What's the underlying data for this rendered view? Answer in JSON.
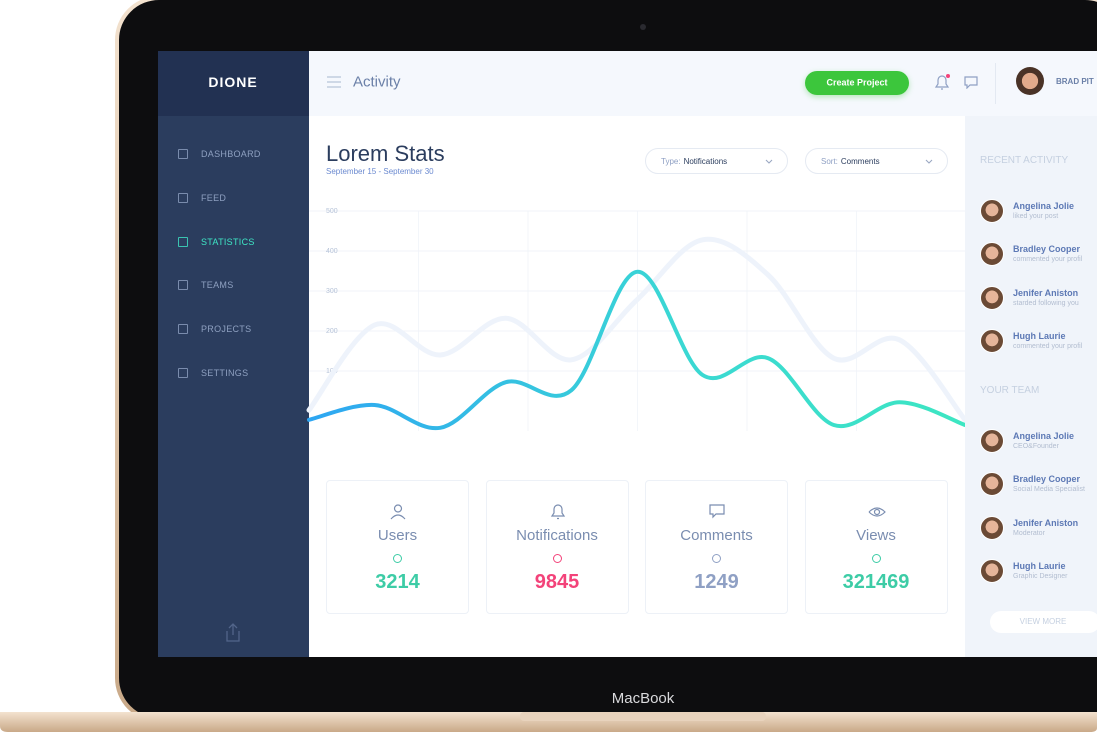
{
  "sidebar": {
    "logo": "DIONE",
    "menu": [
      "DASHBOARD",
      "FEED",
      "STATISTICS",
      "TEAMS",
      "PROJECTS",
      "SETTINGS"
    ]
  },
  "topbar": {
    "title": "Activity",
    "button": "Create Project",
    "user": "BRAD PIT"
  },
  "main": {
    "title": "Lorem Stats",
    "date": "September 15 - September 30",
    "filters": [
      {
        "label": "Type:",
        "value": "Notifications"
      },
      {
        "label": "Sort:",
        "value": "Comments"
      }
    ],
    "stats": [
      {
        "label": "Users",
        "value": 3214,
        "color": "#3dcca6"
      },
      {
        "label": "Notifications",
        "value": 9845,
        "color": "#f3437a"
      },
      {
        "label": "Comments",
        "value": 1249,
        "color": "#8fa0c4"
      },
      {
        "label": "Views",
        "value": 321469,
        "color": "#3dcca6"
      }
    ]
  },
  "chart_data": {
    "type": "line",
    "categories": [
      null,
      null,
      null,
      null,
      null,
      null,
      null,
      null,
      null,
      null,
      null
    ],
    "series": [
      {
        "color": "#2ea6f2",
        "values": [
          -22,
          15,
          -42,
          72,
          52,
          348,
          90,
          132,
          -35,
          22,
          -35
        ]
      },
      {
        "color": "#eef3fb",
        "values": [
          2,
          215,
          140,
          232,
          128,
          278,
          428,
          340,
          132,
          178,
          -22
        ]
      }
    ],
    "ylim": [
      -75,
      500
    ],
    "yticks": [
      100,
      200,
      300,
      400,
      500
    ],
    "grid": true
  },
  "right_panel": {
    "recent_title": "RECENT ACTIVITY",
    "recent": [
      {
        "name": "Angelina Jolie",
        "text": "liked your post"
      },
      {
        "name": "Bradley Cooper",
        "text": "commented your profil"
      },
      {
        "name": "Jenifer Aniston",
        "text": "starded following you"
      },
      {
        "name": "Hugh Laurie",
        "text": "commented your profil"
      }
    ],
    "team_title": "YOUR TEAM",
    "team": [
      {
        "name": "Angelina Jolie",
        "text": "CEO&Founder"
      },
      {
        "name": "Bradley Cooper",
        "text": "Social Media Specialist"
      },
      {
        "name": "Jenifer Aniston",
        "text": "Moderator"
      },
      {
        "name": "Hugh Laurie",
        "text": "Graphic Designer"
      }
    ],
    "button": "VIEW MORE"
  },
  "device": {
    "brand": "MacBook"
  }
}
